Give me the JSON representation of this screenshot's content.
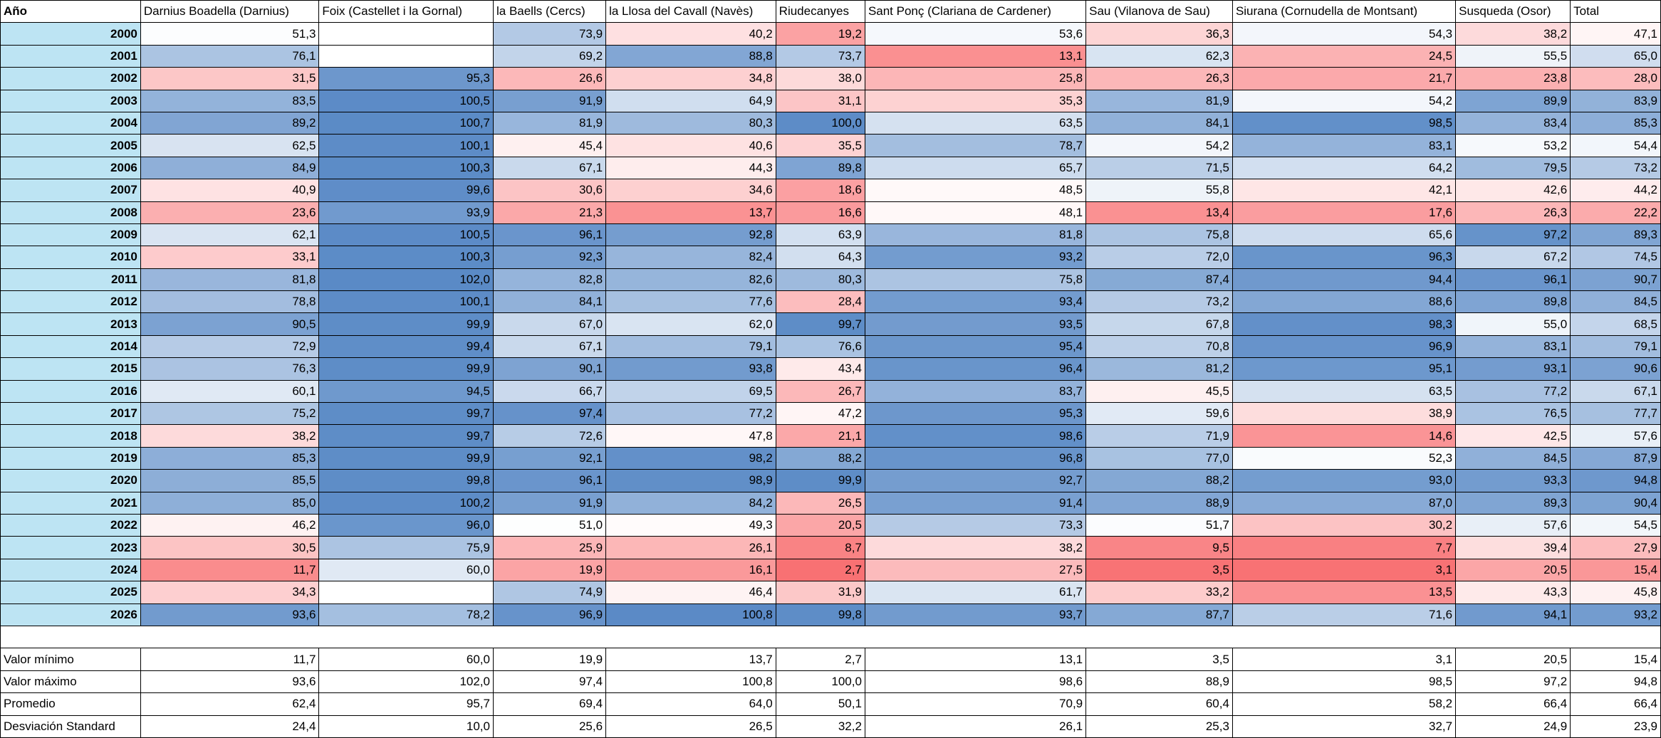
{
  "chart_data": {
    "type": "table",
    "title": "",
    "colors": {
      "low": "#f8696b",
      "mid": "#ffffff",
      "high": "#5a8ac6",
      "year_cell": "#bde4f3"
    },
    "scale_max": 101.0,
    "columns": [
      "Año",
      "Darnius Boadella (Darnius)",
      "Foix (Castellet i la Gornal)",
      "la Baells (Cercs)",
      "la Llosa del Cavall (Navès)",
      "Riudecanyes",
      "Sant Ponç (Clariana de Cardener)",
      "Sau (Vilanova de Sau)",
      "Siurana (Cornudella de Montsant)",
      "Susqueda (Osor)",
      "Total"
    ],
    "rows": [
      {
        "year": "2000",
        "values": [
          "51,3",
          "",
          "73,9",
          "40,2",
          "19,2",
          "53,6",
          "36,3",
          "54,3",
          "38,2",
          "47,1"
        ]
      },
      {
        "year": "2001",
        "values": [
          "76,1",
          "",
          "69,2",
          "88,8",
          "73,7",
          "13,1",
          "62,3",
          "24,5",
          "55,5",
          "65,0"
        ]
      },
      {
        "year": "2002",
        "values": [
          "31,5",
          "95,3",
          "26,6",
          "34,8",
          "38,0",
          "25,8",
          "26,3",
          "21,7",
          "23,8",
          "28,0"
        ]
      },
      {
        "year": "2003",
        "values": [
          "83,5",
          "100,5",
          "91,9",
          "64,9",
          "31,1",
          "35,3",
          "81,9",
          "54,2",
          "89,9",
          "83,9"
        ]
      },
      {
        "year": "2004",
        "values": [
          "89,2",
          "100,7",
          "81,9",
          "80,3",
          "100,0",
          "63,5",
          "84,1",
          "98,5",
          "83,4",
          "85,3"
        ]
      },
      {
        "year": "2005",
        "values": [
          "62,5",
          "100,1",
          "45,4",
          "40,6",
          "35,5",
          "78,7",
          "54,2",
          "83,1",
          "53,2",
          "54,4"
        ]
      },
      {
        "year": "2006",
        "values": [
          "84,9",
          "100,3",
          "67,1",
          "44,3",
          "89,8",
          "65,7",
          "71,5",
          "64,2",
          "79,5",
          "73,2"
        ]
      },
      {
        "year": "2007",
        "values": [
          "40,9",
          "99,6",
          "30,6",
          "34,6",
          "18,6",
          "48,5",
          "55,8",
          "42,1",
          "42,6",
          "44,2"
        ]
      },
      {
        "year": "2008",
        "values": [
          "23,6",
          "93,9",
          "21,3",
          "13,7",
          "16,6",
          "48,1",
          "13,4",
          "17,6",
          "26,3",
          "22,2"
        ]
      },
      {
        "year": "2009",
        "values": [
          "62,1",
          "100,5",
          "96,1",
          "92,8",
          "63,9",
          "81,8",
          "75,8",
          "65,6",
          "97,2",
          "89,3"
        ]
      },
      {
        "year": "2010",
        "values": [
          "33,1",
          "100,3",
          "92,3",
          "82,4",
          "64,3",
          "93,2",
          "72,0",
          "96,3",
          "67,2",
          "74,5"
        ]
      },
      {
        "year": "2011",
        "values": [
          "81,8",
          "102,0",
          "82,8",
          "82,6",
          "80,3",
          "75,8",
          "87,4",
          "94,4",
          "96,1",
          "90,7"
        ]
      },
      {
        "year": "2012",
        "values": [
          "78,8",
          "100,1",
          "84,1",
          "77,6",
          "28,4",
          "93,4",
          "73,2",
          "88,6",
          "89,8",
          "84,5"
        ]
      },
      {
        "year": "2013",
        "values": [
          "90,5",
          "99,9",
          "67,0",
          "62,0",
          "99,7",
          "93,5",
          "67,8",
          "98,3",
          "55,0",
          "68,5"
        ]
      },
      {
        "year": "2014",
        "values": [
          "72,9",
          "99,4",
          "67,1",
          "79,1",
          "76,6",
          "95,4",
          "70,8",
          "96,9",
          "83,1",
          "79,1"
        ]
      },
      {
        "year": "2015",
        "values": [
          "76,3",
          "99,9",
          "90,1",
          "93,8",
          "43,4",
          "96,4",
          "81,2",
          "95,1",
          "93,1",
          "90,6"
        ]
      },
      {
        "year": "2016",
        "values": [
          "60,1",
          "94,5",
          "66,7",
          "69,5",
          "26,7",
          "83,7",
          "45,5",
          "63,5",
          "77,2",
          "67,1"
        ]
      },
      {
        "year": "2017",
        "values": [
          "75,2",
          "99,7",
          "97,4",
          "77,2",
          "47,2",
          "95,3",
          "59,6",
          "38,9",
          "76,5",
          "77,7"
        ]
      },
      {
        "year": "2018",
        "values": [
          "38,2",
          "99,7",
          "72,6",
          "47,8",
          "21,1",
          "98,6",
          "71,9",
          "14,6",
          "42,5",
          "57,6"
        ]
      },
      {
        "year": "2019",
        "values": [
          "85,3",
          "99,9",
          "92,1",
          "98,2",
          "88,2",
          "96,8",
          "77,0",
          "52,3",
          "84,5",
          "87,9"
        ]
      },
      {
        "year": "2020",
        "values": [
          "85,5",
          "99,8",
          "96,1",
          "98,9",
          "99,9",
          "92,7",
          "88,2",
          "93,0",
          "93,3",
          "94,8"
        ]
      },
      {
        "year": "2021",
        "values": [
          "85,0",
          "100,2",
          "91,9",
          "84,2",
          "26,5",
          "91,4",
          "88,9",
          "87,0",
          "89,3",
          "90,4"
        ]
      },
      {
        "year": "2022",
        "values": [
          "46,2",
          "96,0",
          "51,0",
          "49,3",
          "20,5",
          "73,3",
          "51,7",
          "30,2",
          "57,6",
          "54,5"
        ]
      },
      {
        "year": "2023",
        "values": [
          "30,5",
          "75,9",
          "25,9",
          "26,1",
          "8,7",
          "38,2",
          "9,5",
          "7,7",
          "39,4",
          "27,9"
        ]
      },
      {
        "year": "2024",
        "values": [
          "11,7",
          "60,0",
          "19,9",
          "16,1",
          "2,7",
          "27,5",
          "3,5",
          "3,1",
          "20,5",
          "15,4"
        ]
      },
      {
        "year": "2025",
        "values": [
          "34,3",
          "",
          "74,9",
          "46,4",
          "31,9",
          "61,7",
          "33,2",
          "13,5",
          "43,3",
          "45,8"
        ]
      },
      {
        "year": "2026",
        "values": [
          "93,6",
          "78,2",
          "96,9",
          "100,8",
          "99,8",
          "93,7",
          "87,7",
          "71,6",
          "94,1",
          "93,2"
        ]
      }
    ],
    "stats": [
      {
        "label": "Valor mínimo",
        "values": [
          "11,7",
          "60,0",
          "19,9",
          "13,7",
          "2,7",
          "13,1",
          "3,5",
          "3,1",
          "20,5",
          "15,4"
        ]
      },
      {
        "label": "Valor máximo",
        "values": [
          "93,6",
          "102,0",
          "97,4",
          "100,8",
          "100,0",
          "98,6",
          "88,9",
          "98,5",
          "97,2",
          "94,8"
        ]
      },
      {
        "label": "Promedio",
        "values": [
          "62,4",
          "95,7",
          "69,4",
          "64,0",
          "50,1",
          "70,9",
          "60,4",
          "58,2",
          "66,4",
          "66,4"
        ]
      },
      {
        "label": "Desviación Standard",
        "values": [
          "24,4",
          "10,0",
          "25,6",
          "26,5",
          "32,2",
          "26,1",
          "25,3",
          "32,7",
          "24,9",
          "23,9"
        ]
      }
    ]
  }
}
